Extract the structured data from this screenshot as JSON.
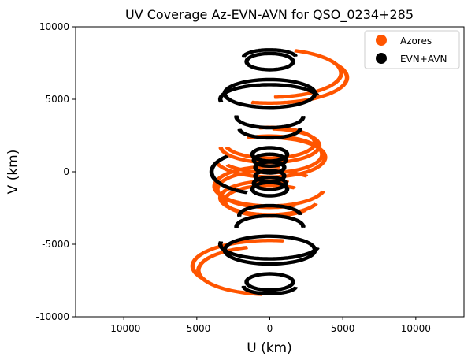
{
  "chart_data": {
    "type": "scatter",
    "title": "UV Coverage Az-EVN-AVN for QSO_0234+285",
    "xlabel": "U (km)",
    "ylabel": "V (km)",
    "xlim": [
      -13300,
      13300
    ],
    "ylim": [
      -10000,
      10000
    ],
    "xticks": [
      -10000,
      -5000,
      0,
      5000,
      10000
    ],
    "xtick_labels": [
      "-10000",
      "-5000",
      "0",
      "5000",
      "10000"
    ],
    "yticks": [
      -10000,
      -5000,
      0,
      5000,
      10000
    ],
    "ytick_labels": [
      "-10000",
      "-5000",
      "0",
      "5000",
      "10000"
    ],
    "grid": false,
    "legend_position": "top-right",
    "series": [
      {
        "name": "Azores",
        "color": "#ff5500",
        "arcs": [
          {
            "cx": 0,
            "cy": 2000,
            "a": 3000,
            "b": 1000,
            "t0": -2.8,
            "t1": 1.8
          },
          {
            "cx": 0,
            "cy": 1800,
            "a": 3300,
            "b": 1100,
            "t0": -3.0,
            "t1": 1.5
          },
          {
            "cx": 0,
            "cy": 1200,
            "a": 3500,
            "b": 1200,
            "t0": -2.5,
            "t1": 2.0
          },
          {
            "cx": 0,
            "cy": 1000,
            "a": 3700,
            "b": 1300,
            "t0": -2.9,
            "t1": 1.7
          },
          {
            "cx": 0,
            "cy": -2000,
            "a": 3000,
            "b": 1000,
            "t0": 1.0,
            "t1": 5.6
          },
          {
            "cx": 0,
            "cy": -1800,
            "a": 3300,
            "b": 1100,
            "t0": 1.2,
            "t1": 5.9
          },
          {
            "cx": 0,
            "cy": -1200,
            "a": 3500,
            "b": 1200,
            "t0": 0.8,
            "t1": 5.2
          },
          {
            "cx": 0,
            "cy": -1000,
            "a": 3700,
            "b": 1300,
            "t0": 1.4,
            "t1": 6.0
          },
          {
            "cx": 0,
            "cy": 6500,
            "a": 5200,
            "b": 1700,
            "t0": -1.8,
            "t1": 0.5
          },
          {
            "cx": 0,
            "cy": 6800,
            "a": 4800,
            "b": 1600,
            "t0": -1.5,
            "t1": 1.2
          },
          {
            "cx": 0,
            "cy": -6500,
            "a": 5200,
            "b": 1700,
            "t0": 1.4,
            "t1": 3.7
          },
          {
            "cx": 0,
            "cy": -6800,
            "a": 4800,
            "b": 1600,
            "t0": 1.9,
            "t1": 4.6
          }
        ]
      },
      {
        "name": "EVN+AVN",
        "color": "#000000",
        "arcs": [
          {
            "cx": 0,
            "cy": 7600,
            "a": 1500,
            "b": 500,
            "t0": 0.0,
            "t1": 6.28
          },
          {
            "cx": 0,
            "cy": 7900,
            "a": 1700,
            "b": 450,
            "t0": 0.2,
            "t1": 3.0
          },
          {
            "cx": 0,
            "cy": 5400,
            "a": 3000,
            "b": 900,
            "t0": 0.0,
            "t1": 6.28
          },
          {
            "cx": 0,
            "cy": 5000,
            "a": 3300,
            "b": 950,
            "t0": 0.3,
            "t1": 3.3
          },
          {
            "cx": 0,
            "cy": 3800,
            "a": 2200,
            "b": 700,
            "t0": 3.1,
            "t1": 6.28
          },
          {
            "cx": 0,
            "cy": 3000,
            "a": 2000,
            "b": 600,
            "t0": 3.3,
            "t1": 6.2
          },
          {
            "cx": 0,
            "cy": 1200,
            "a": 1100,
            "b": 400,
            "t0": 0.0,
            "t1": 6.28
          },
          {
            "cx": 0,
            "cy": 800,
            "a": 1000,
            "b": 350,
            "t0": 0.0,
            "t1": 6.28
          },
          {
            "cx": 0,
            "cy": 300,
            "a": 900,
            "b": 320,
            "t0": 0.0,
            "t1": 6.28
          },
          {
            "cx": 0,
            "cy": -300,
            "a": 900,
            "b": 320,
            "t0": 0.0,
            "t1": 6.28
          },
          {
            "cx": 0,
            "cy": -800,
            "a": 1000,
            "b": 350,
            "t0": 0.0,
            "t1": 6.28
          },
          {
            "cx": 0,
            "cy": -1200,
            "a": 1100,
            "b": 400,
            "t0": 0.0,
            "t1": 6.28
          },
          {
            "cx": 0,
            "cy": 0,
            "a": 3900,
            "b": 1500,
            "t0": 2.4,
            "t1": 4.3
          },
          {
            "cx": 0,
            "cy": -3000,
            "a": 2000,
            "b": 600,
            "t0": 0.1,
            "t1": 3.2
          },
          {
            "cx": 0,
            "cy": -3800,
            "a": 2200,
            "b": 700,
            "t0": 0.0,
            "t1": 3.2
          },
          {
            "cx": 0,
            "cy": -5000,
            "a": 3300,
            "b": 950,
            "t0": 3.0,
            "t1": 6.0
          },
          {
            "cx": 0,
            "cy": -5400,
            "a": 3000,
            "b": 900,
            "t0": 0.0,
            "t1": 6.28
          },
          {
            "cx": 0,
            "cy": -7600,
            "a": 1500,
            "b": 500,
            "t0": 0.0,
            "t1": 6.28
          },
          {
            "cx": 0,
            "cy": -7900,
            "a": 1700,
            "b": 450,
            "t0": 3.2,
            "t1": 6.1
          }
        ]
      }
    ]
  }
}
